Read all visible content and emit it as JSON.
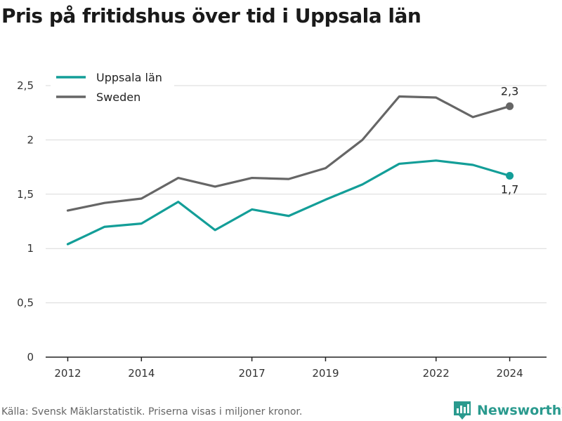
{
  "title": "Pris på fritidshus över tid i Uppsala län",
  "source": "Källa: Svensk Mäklarstatistik. Priserna visas i miljoner kronor.",
  "brand": {
    "name": "Newsworthy",
    "icon": "bar-chart-logo-icon"
  },
  "colors": {
    "uppsala": "#139e98",
    "sweden": "#666666",
    "grid": "#d9d9d9",
    "axis": "#222222"
  },
  "chart_data": {
    "type": "line",
    "title": "Pris på fritidshus över tid i Uppsala län",
    "xlabel": "",
    "ylabel": "",
    "x": [
      2012,
      2013,
      2014,
      2015,
      2016,
      2017,
      2018,
      2019,
      2020,
      2021,
      2022,
      2023,
      2024
    ],
    "xticks": [
      2012,
      2014,
      2017,
      2019,
      2022,
      2024
    ],
    "xtick_labels": [
      "2012",
      "2014",
      "2017",
      "2019",
      "2022",
      "2024"
    ],
    "yticks": [
      0,
      0.5,
      1,
      1.5,
      2,
      2.5
    ],
    "ytick_labels": [
      "0",
      "0,5",
      "1",
      "1,5",
      "2",
      "2,5"
    ],
    "xlim": [
      2011.4,
      2025.0
    ],
    "ylim": [
      0,
      2.5
    ],
    "grid": "horizontal",
    "legend": "top-left",
    "series": [
      {
        "name": "Uppsala län",
        "color": "#139e98",
        "values": [
          1.04,
          1.2,
          1.23,
          1.43,
          1.17,
          1.36,
          1.3,
          1.45,
          1.59,
          1.78,
          1.81,
          1.77,
          1.67
        ],
        "end_label": "1,7"
      },
      {
        "name": "Sweden",
        "color": "#666666",
        "values": [
          1.35,
          1.42,
          1.46,
          1.65,
          1.57,
          1.65,
          1.64,
          1.74,
          2.0,
          2.4,
          2.39,
          2.21,
          2.31
        ],
        "end_label": "2,3"
      }
    ]
  }
}
